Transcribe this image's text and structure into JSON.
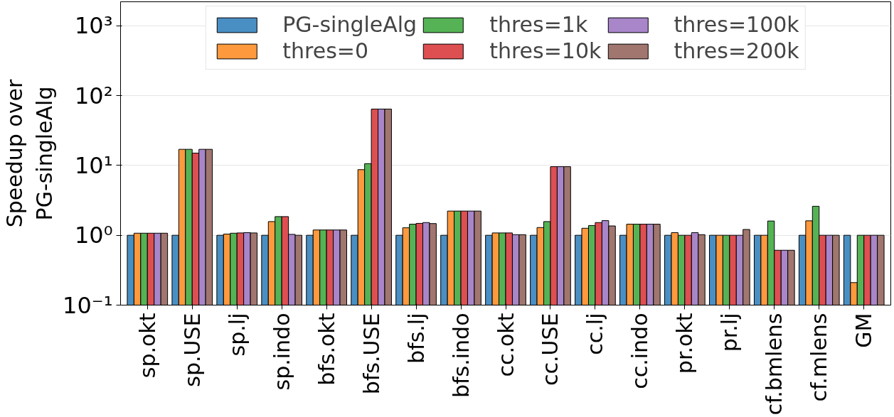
{
  "chart_data": {
    "type": "bar",
    "ylabel": "Speedup over\nPG-singleAlg",
    "categories": [
      "sp.okt",
      "sp.USE",
      "sp.lj",
      "sp.indo",
      "bfs.okt",
      "bfs.USE",
      "bfs.lj",
      "bfs.indo",
      "cc.okt",
      "cc.USE",
      "cc.lj",
      "cc.indo",
      "pr.okt",
      "pr.lj",
      "cf.bmlens",
      "cf.mlens",
      "GM"
    ],
    "series": [
      {
        "name": "PG-singleAlg",
        "color": "#4a8fc3",
        "values": [
          1,
          1,
          1,
          1,
          1,
          1,
          1,
          1,
          1,
          1,
          1,
          1,
          1,
          1,
          1,
          1,
          1
        ]
      },
      {
        "name": "thres=0",
        "color": "#ff993e",
        "values": [
          1.07,
          17,
          1.04,
          1.57,
          1.19,
          8.7,
          1.28,
          2.22,
          1.08,
          1.29,
          1.26,
          1.44,
          1.09,
          1,
          1,
          1.61,
          0.21
        ]
      },
      {
        "name": "thres=1k",
        "color": "#55b355",
        "values": [
          1.07,
          17,
          1.07,
          1.85,
          1.19,
          10.6,
          1.44,
          2.22,
          1.08,
          1.57,
          1.38,
          1.44,
          1,
          1,
          1.6,
          2.6,
          1
        ]
      },
      {
        "name": "thres=10k",
        "color": "#de4f52",
        "values": [
          1.07,
          15,
          1.08,
          1.85,
          1.19,
          64,
          1.48,
          2.22,
          1.08,
          9.6,
          1.52,
          1.44,
          1,
          1,
          0.61,
          1,
          1
        ]
      },
      {
        "name": "thres=100k",
        "color": "#a886c9",
        "values": [
          1.07,
          17,
          1.09,
          1.03,
          1.19,
          64,
          1.52,
          2.22,
          1.02,
          9.6,
          1.62,
          1.44,
          1.09,
          1,
          0.61,
          1,
          1
        ]
      },
      {
        "name": "thres=200k",
        "color": "#a0766f",
        "values": [
          1.07,
          17,
          1.08,
          1,
          1.19,
          64,
          1.47,
          2.22,
          1.02,
          9.6,
          1.36,
          1.44,
          1.02,
          1.21,
          0.61,
          1,
          1
        ]
      }
    ],
    "log": true,
    "ylim": [
      0.1,
      2200
    ],
    "yticks": [
      {
        "value": 0.1,
        "label": "10⁻¹"
      },
      {
        "value": 1,
        "label": "10⁰"
      },
      {
        "value": 10,
        "label": "10¹"
      },
      {
        "value": 100,
        "label": "10²"
      },
      {
        "value": 1000,
        "label": "10³"
      }
    ],
    "grid": "y",
    "legend": "top"
  }
}
